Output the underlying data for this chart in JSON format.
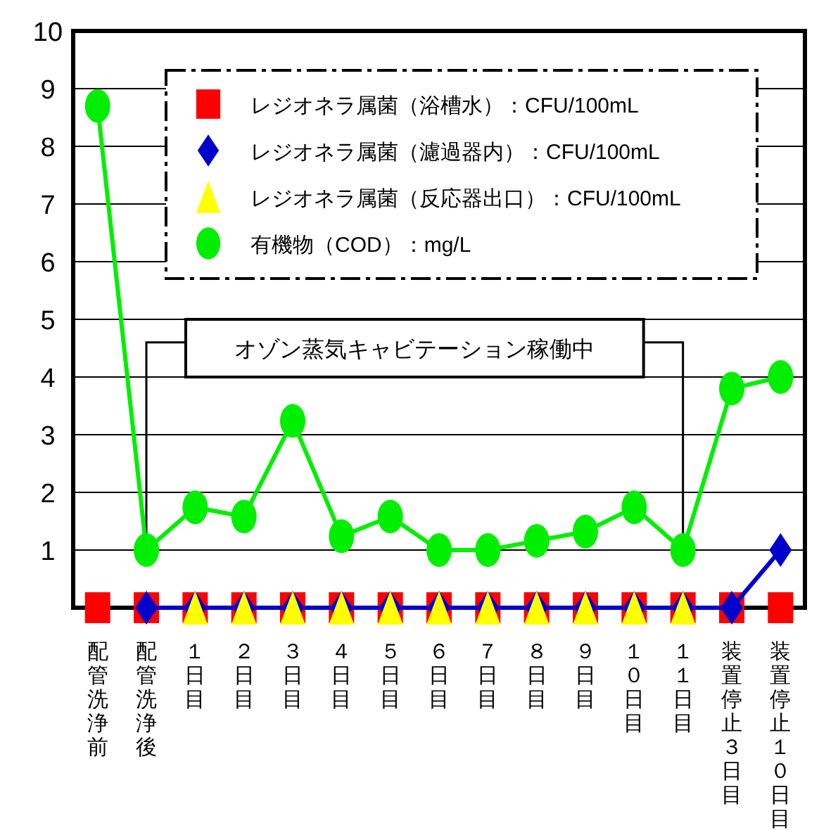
{
  "chart_data": {
    "type": "line",
    "categories": [
      "配管洗浄前",
      "配管洗浄後",
      "１日目",
      "２日目",
      "３日目",
      "４日目",
      "５日目",
      "６日目",
      "７日目",
      "８日目",
      "９日目",
      "１０日目",
      "１１日目",
      "装置停止３日目",
      "装置停止１０日目"
    ],
    "series": [
      {
        "name": "レジオネラ属菌（浴槽水）：CFU/100mL",
        "type": "scatter",
        "color": "#ff0000",
        "marker": "square",
        "values": [
          0,
          0,
          0,
          0,
          0,
          0,
          0,
          0,
          0,
          0,
          0,
          0,
          0,
          0,
          0
        ]
      },
      {
        "name": "レジオネラ属菌（濾過器内）：CFU/100mL",
        "color": "#0000cc",
        "marker": "diamond",
        "values": [
          null,
          0,
          0,
          0,
          0,
          0,
          0,
          0,
          0,
          0,
          0,
          0,
          0,
          0,
          1
        ]
      },
      {
        "name": "レジオネラ属菌（反応器出口）：CFU/100mL",
        "type": "scatter",
        "color": "#ffff00",
        "marker": "triangle",
        "values": [
          null,
          null,
          0,
          0,
          0,
          0,
          0,
          0,
          0,
          0,
          0,
          0,
          0,
          null,
          null
        ]
      },
      {
        "name": "有機物（COD）：mg/L",
        "color": "#00ee00",
        "marker": "circle",
        "values": [
          8.7,
          1.0,
          1.74,
          1.58,
          3.24,
          1.24,
          1.58,
          1.0,
          1.0,
          1.16,
          1.32,
          1.74,
          1.0,
          3.8,
          4.0
        ]
      }
    ],
    "ylim": [
      0,
      10
    ],
    "yticks": [
      {
        "value": 0,
        "label": null
      },
      1,
      2,
      3,
      4,
      5,
      6,
      7,
      8,
      9,
      10
    ],
    "grid": "y",
    "legend": "top right",
    "annotations": [
      "オゾン蒸気キャビテーション稼働中"
    ]
  }
}
